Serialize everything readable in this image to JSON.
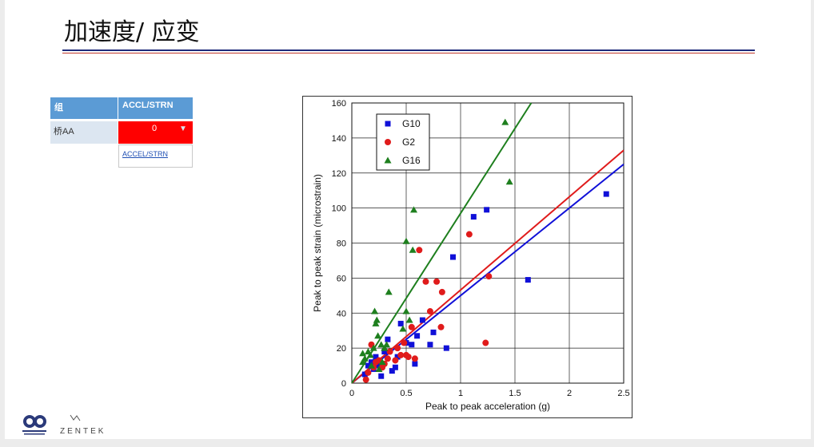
{
  "slide": {
    "title": "加速度/ 应变"
  },
  "table": {
    "header_group": "组",
    "header_ratio": "ACCL/STRN",
    "row_name": "桥AA",
    "row_value": "0",
    "dropdown_option": "ACCEL/STRN"
  },
  "logos": {
    "left_caption": "",
    "right_text": "ZENTEK"
  },
  "colors": {
    "title_rule_blue": "#1f2a7a",
    "title_rule_red": "#c0392b",
    "header_blue": "#5b9bd5",
    "value_red": "#ff0000"
  },
  "chart_data": {
    "type": "scatter",
    "xlabel": "Peak to peak acceleration (g)",
    "ylabel": "Peak to peak strain (microstrain)",
    "xlim": [
      0,
      2.5
    ],
    "ylim": [
      0,
      160
    ],
    "x_ticks": [
      "0",
      "0.5",
      "1",
      "1.5",
      "2",
      "2.5"
    ],
    "y_ticks": [
      "0",
      "20",
      "40",
      "60",
      "80",
      "100",
      "120",
      "140",
      "160"
    ],
    "grid": true,
    "legend_position": "top-left",
    "series": [
      {
        "name": "G10",
        "marker": "square",
        "color": "#1010d8",
        "points": [
          [
            0.12,
            5
          ],
          [
            0.15,
            10
          ],
          [
            0.18,
            12
          ],
          [
            0.2,
            8
          ],
          [
            0.22,
            15
          ],
          [
            0.25,
            10
          ],
          [
            0.27,
            4
          ],
          [
            0.3,
            18
          ],
          [
            0.33,
            25
          ],
          [
            0.37,
            7
          ],
          [
            0.4,
            9
          ],
          [
            0.42,
            15
          ],
          [
            0.45,
            34
          ],
          [
            0.5,
            23
          ],
          [
            0.55,
            22
          ],
          [
            0.58,
            11
          ],
          [
            0.6,
            27
          ],
          [
            0.65,
            36
          ],
          [
            0.72,
            22
          ],
          [
            0.75,
            29
          ],
          [
            0.87,
            20
          ],
          [
            0.93,
            72
          ],
          [
            1.12,
            95
          ],
          [
            1.24,
            99
          ],
          [
            1.62,
            59
          ],
          [
            2.34,
            108
          ]
        ],
        "fit": [
          [
            0,
            0
          ],
          [
            2.5,
            125
          ]
        ]
      },
      {
        "name": "G2",
        "marker": "circle",
        "color": "#e01b1b",
        "points": [
          [
            0.13,
            2
          ],
          [
            0.15,
            6
          ],
          [
            0.18,
            22
          ],
          [
            0.2,
            9
          ],
          [
            0.22,
            12
          ],
          [
            0.25,
            13
          ],
          [
            0.28,
            9
          ],
          [
            0.3,
            11
          ],
          [
            0.33,
            14
          ],
          [
            0.35,
            18
          ],
          [
            0.4,
            13
          ],
          [
            0.42,
            20
          ],
          [
            0.45,
            16
          ],
          [
            0.48,
            23
          ],
          [
            0.5,
            16
          ],
          [
            0.52,
            15
          ],
          [
            0.55,
            32
          ],
          [
            0.58,
            14
          ],
          [
            0.62,
            76
          ],
          [
            0.68,
            58
          ],
          [
            0.72,
            41
          ],
          [
            0.78,
            58
          ],
          [
            0.82,
            32
          ],
          [
            0.83,
            52
          ],
          [
            1.08,
            85
          ],
          [
            1.23,
            23
          ],
          [
            1.26,
            61
          ]
        ],
        "fit": [
          [
            0,
            0
          ],
          [
            2.5,
            133
          ]
        ]
      },
      {
        "name": "G16",
        "marker": "triangle",
        "color": "#1e7f1e",
        "points": [
          [
            0.1,
            12
          ],
          [
            0.1,
            17
          ],
          [
            0.12,
            14
          ],
          [
            0.15,
            18
          ],
          [
            0.17,
            16
          ],
          [
            0.18,
            10
          ],
          [
            0.2,
            20
          ],
          [
            0.21,
            41
          ],
          [
            0.22,
            34
          ],
          [
            0.23,
            36
          ],
          [
            0.24,
            27
          ],
          [
            0.25,
            8
          ],
          [
            0.27,
            22
          ],
          [
            0.28,
            12
          ],
          [
            0.3,
            20
          ],
          [
            0.32,
            22
          ],
          [
            0.34,
            52
          ],
          [
            0.47,
            31
          ],
          [
            0.5,
            41
          ],
          [
            0.5,
            81
          ],
          [
            0.53,
            36
          ],
          [
            0.56,
            76
          ],
          [
            0.57,
            99
          ],
          [
            1.41,
            149
          ],
          [
            1.45,
            115
          ]
        ],
        "fit": [
          [
            0,
            0
          ],
          [
            1.65,
            160
          ]
        ]
      }
    ]
  }
}
